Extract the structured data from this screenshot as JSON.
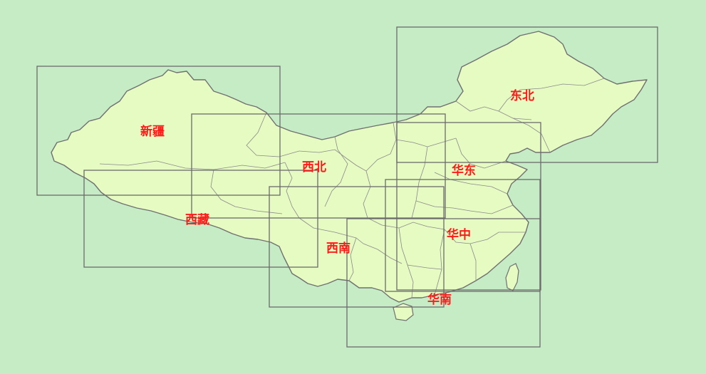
{
  "background_color": "#c6ecc6",
  "land_color": "#e6fbc2",
  "box_color": "#6b6b6b",
  "label_color": "#ff1a1a",
  "regions": [
    {
      "id": "dongbei",
      "label": "东北"
    },
    {
      "id": "xinjiang",
      "label": "新疆"
    },
    {
      "id": "xibei",
      "label": "西北"
    },
    {
      "id": "huadong",
      "label": "华东"
    },
    {
      "id": "xizang",
      "label": "西藏"
    },
    {
      "id": "huazhong",
      "label": "华中"
    },
    {
      "id": "xinan",
      "label": "西南"
    },
    {
      "id": "huanan",
      "label": "华南"
    }
  ]
}
